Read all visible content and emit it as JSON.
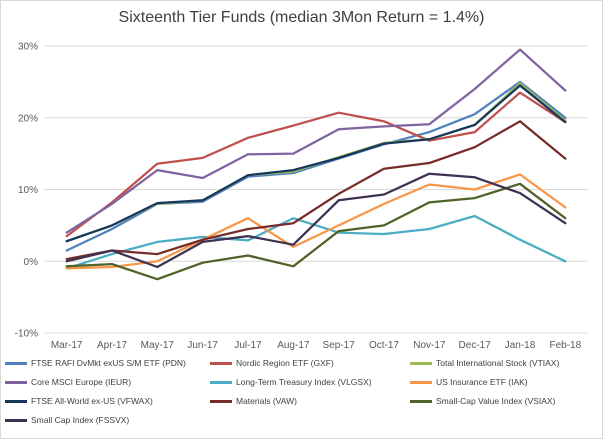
{
  "chart_data": {
    "type": "line",
    "title": "Sixteenth Tier Funds (median 3Mon Return = 1.4%)",
    "xlabel": "",
    "ylabel": "",
    "ylim": [
      -10,
      30
    ],
    "yticks": [
      "-10%",
      "0%",
      "10%",
      "20%",
      "30%"
    ],
    "categories": [
      "Mar-17",
      "Apr-17",
      "May-17",
      "Jun-17",
      "Jul-17",
      "Aug-17",
      "Sep-17",
      "Oct-17",
      "Nov-17",
      "Dec-17",
      "Jan-18",
      "Feb-18"
    ],
    "grid": "horizontal",
    "legend_position": "bottom",
    "series": [
      {
        "name": "FTSE RAFI DvMkt exUS S/M ETF (PDN)",
        "color": "#4f81bd",
        "values": [
          1.5,
          4.5,
          8.0,
          8.3,
          11.8,
          12.3,
          14.3,
          16.3,
          18.0,
          20.5,
          25.0,
          20.0
        ]
      },
      {
        "name": "Nordic Region ETF (GXF)",
        "color": "#c0504d",
        "values": [
          3.5,
          8.2,
          13.6,
          14.4,
          17.2,
          18.9,
          20.7,
          19.5,
          16.8,
          18.0,
          23.5,
          19.4
        ]
      },
      {
        "name": "Total International Stock (VTIAX)",
        "color": "#9bbb59",
        "values": [
          2.8,
          5.0,
          8.0,
          8.5,
          12.0,
          12.5,
          14.5,
          16.5,
          17.0,
          19.0,
          24.8,
          19.6
        ]
      },
      {
        "name": "Core MSCI Europe (IEUR)",
        "color": "#8064a2",
        "values": [
          4.0,
          8.0,
          12.7,
          11.6,
          14.9,
          15.0,
          18.4,
          18.8,
          19.1,
          24.0,
          29.5,
          23.8
        ]
      },
      {
        "name": "Long-Term Treasury Index (VLGSX)",
        "color": "#4bacc6",
        "values": [
          -1.0,
          1.0,
          2.7,
          3.4,
          2.9,
          6.0,
          4.0,
          3.8,
          4.5,
          6.3,
          3.0,
          0.0
        ]
      },
      {
        "name": "US Insurance ETF (IAK)",
        "color": "#f79646",
        "values": [
          -1.0,
          -0.8,
          0.0,
          3.0,
          6.0,
          2.0,
          5.0,
          8.0,
          10.7,
          10.0,
          12.1,
          7.5
        ]
      },
      {
        "name": "FTSE All-World ex-US (VFWAX)",
        "color": "#17375e",
        "values": [
          2.8,
          5.0,
          8.1,
          8.5,
          12.0,
          12.7,
          14.4,
          16.4,
          17.0,
          19.0,
          24.5,
          19.4
        ]
      },
      {
        "name": "Materials (VAW)",
        "color": "#772c2a",
        "values": [
          0.3,
          1.5,
          1.0,
          3.0,
          4.5,
          5.3,
          9.4,
          12.9,
          13.7,
          15.9,
          19.5,
          14.3
        ]
      },
      {
        "name": "Small-Cap Value Index (VSIAX)",
        "color": "#4f6228",
        "values": [
          -0.7,
          -0.4,
          -2.5,
          -0.2,
          0.8,
          -0.7,
          4.2,
          5.0,
          8.2,
          8.8,
          10.8,
          6.0
        ]
      },
      {
        "name": "Small Cap Index (FSSVX)",
        "color": "#3f3151",
        "values": [
          0.0,
          1.5,
          -0.8,
          2.7,
          3.5,
          2.3,
          8.5,
          9.3,
          12.2,
          11.7,
          9.5,
          5.3
        ]
      }
    ]
  }
}
